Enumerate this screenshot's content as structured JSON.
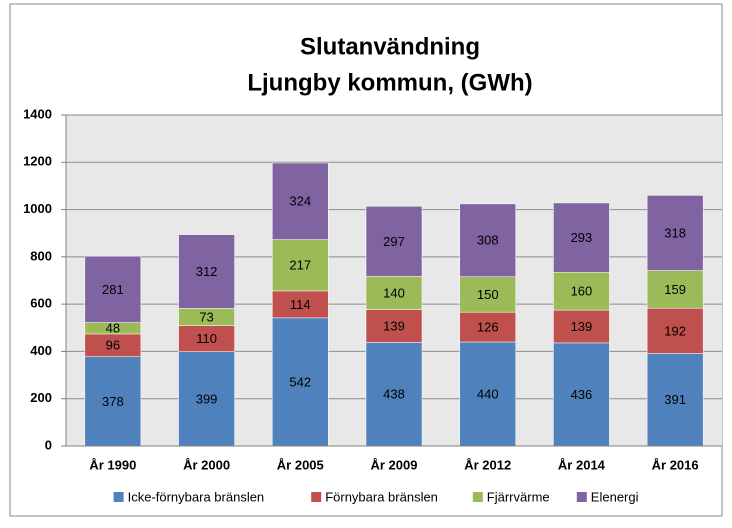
{
  "chart_data": {
    "type": "stacked_bar",
    "title": [
      "Slutanvändning",
      "Ljungby kommun, (GWh)"
    ],
    "categories": [
      "År 1990",
      "År 2000",
      "År 2005",
      "År 2009",
      "År 2012",
      "År 2014",
      "År 2016"
    ],
    "series": [
      {
        "name": "Icke-förnybara bränslen",
        "color": "#4f81bd",
        "values": [
          378,
          399,
          542,
          438,
          440,
          436,
          391
        ]
      },
      {
        "name": "Förnybara bränslen",
        "color": "#c0504d",
        "values": [
          96,
          110,
          114,
          139,
          126,
          139,
          192
        ]
      },
      {
        "name": "Fjärrvärme",
        "color": "#9bbb59",
        "values": [
          48,
          73,
          217,
          140,
          150,
          160,
          159
        ]
      },
      {
        "name": "Elenergi",
        "color": "#8064a2",
        "values": [
          281,
          312,
          324,
          297,
          308,
          293,
          318
        ]
      }
    ],
    "ylim": [
      0,
      1400
    ],
    "yticks": [
      0,
      200,
      400,
      600,
      800,
      1000,
      1200,
      1400
    ],
    "grid": true,
    "legend": "bottom"
  }
}
